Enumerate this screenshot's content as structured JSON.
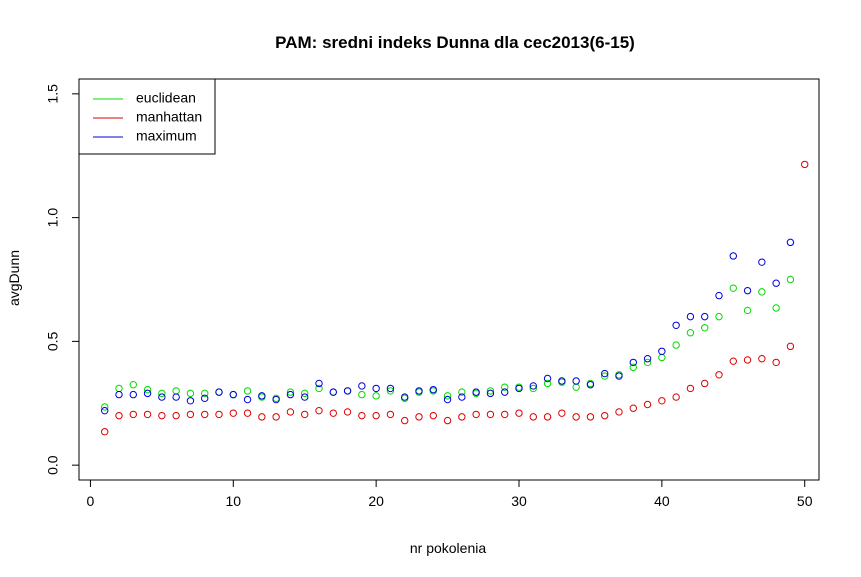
{
  "chart_data": {
    "type": "scatter",
    "title": "PAM: sredni indeks Dunna dla cec2013(6-15)",
    "xlabel": "nr pokolenia",
    "ylabel": "avgDunn",
    "xlim": [
      -0.8,
      51
    ],
    "ylim": [
      -0.06,
      1.56
    ],
    "x_ticks": [
      0,
      10,
      20,
      30,
      40,
      50
    ],
    "y_ticks": [
      0.0,
      0.5,
      1.0,
      1.5
    ],
    "x_tick_labels": [
      "0",
      "10",
      "20",
      "30",
      "40",
      "50"
    ],
    "y_tick_labels": [
      "0.0",
      "0.5",
      "1.0",
      "1.5"
    ],
    "grid": false,
    "legend_position": "top-left",
    "series": [
      {
        "name": "euclidean",
        "color": "#00dd00",
        "x": [
          1,
          2,
          3,
          4,
          5,
          6,
          7,
          8,
          9,
          10,
          11,
          12,
          13,
          14,
          15,
          16,
          17,
          18,
          19,
          20,
          21,
          22,
          23,
          24,
          25,
          26,
          27,
          28,
          29,
          30,
          31,
          32,
          33,
          34,
          35,
          36,
          37,
          38,
          39,
          40,
          41,
          42,
          43,
          44,
          45,
          46,
          47,
          48,
          49
        ],
        "values": [
          0.235,
          0.31,
          0.325,
          0.305,
          0.29,
          0.3,
          0.29,
          0.29,
          0.295,
          0.285,
          0.3,
          0.275,
          0.27,
          0.295,
          0.29,
          0.31,
          0.295,
          0.3,
          0.285,
          0.28,
          0.3,
          0.27,
          0.295,
          0.3,
          0.28,
          0.295,
          0.29,
          0.3,
          0.315,
          0.315,
          0.31,
          0.33,
          0.335,
          0.315,
          0.33,
          0.36,
          0.365,
          0.395,
          0.415,
          0.435,
          0.485,
          0.535,
          0.555,
          0.6,
          0.715,
          0.625,
          0.7,
          0.635,
          0.75
        ]
      },
      {
        "name": "manhattan",
        "color": "#dd0000",
        "x": [
          1,
          2,
          3,
          4,
          5,
          6,
          7,
          8,
          9,
          10,
          11,
          12,
          13,
          14,
          15,
          16,
          17,
          18,
          19,
          20,
          21,
          22,
          23,
          24,
          25,
          26,
          27,
          28,
          29,
          30,
          31,
          32,
          33,
          34,
          35,
          36,
          37,
          38,
          39,
          40,
          41,
          42,
          43,
          44,
          45,
          46,
          47,
          48,
          49,
          50
        ],
        "values": [
          0.135,
          0.2,
          0.205,
          0.205,
          0.2,
          0.2,
          0.205,
          0.205,
          0.205,
          0.21,
          0.21,
          0.195,
          0.195,
          0.215,
          0.205,
          0.22,
          0.21,
          0.215,
          0.2,
          0.2,
          0.205,
          0.18,
          0.195,
          0.2,
          0.18,
          0.195,
          0.205,
          0.205,
          0.205,
          0.21,
          0.195,
          0.195,
          0.21,
          0.195,
          0.195,
          0.2,
          0.215,
          0.23,
          0.245,
          0.26,
          0.275,
          0.31,
          0.33,
          0.365,
          0.42,
          0.425,
          0.43,
          0.415,
          0.48,
          1.215
        ]
      },
      {
        "name": "maximum",
        "color": "#0000dd",
        "x": [
          1,
          2,
          3,
          4,
          5,
          6,
          7,
          8,
          9,
          10,
          11,
          12,
          13,
          14,
          15,
          16,
          17,
          18,
          19,
          20,
          21,
          22,
          23,
          24,
          25,
          26,
          27,
          28,
          29,
          30,
          31,
          32,
          33,
          34,
          35,
          36,
          37,
          38,
          39,
          40,
          41,
          42,
          43,
          44,
          45,
          46,
          47,
          48,
          49
        ],
        "values": [
          0.22,
          0.285,
          0.285,
          0.29,
          0.275,
          0.275,
          0.26,
          0.27,
          0.295,
          0.285,
          0.265,
          0.28,
          0.265,
          0.285,
          0.275,
          0.33,
          0.295,
          0.3,
          0.32,
          0.31,
          0.31,
          0.275,
          0.3,
          0.305,
          0.265,
          0.275,
          0.295,
          0.29,
          0.295,
          0.31,
          0.32,
          0.35,
          0.34,
          0.34,
          0.325,
          0.37,
          0.36,
          0.415,
          0.43,
          0.46,
          0.565,
          0.6,
          0.6,
          0.685,
          0.845,
          0.705,
          0.82,
          0.735,
          0.9
        ]
      }
    ]
  }
}
